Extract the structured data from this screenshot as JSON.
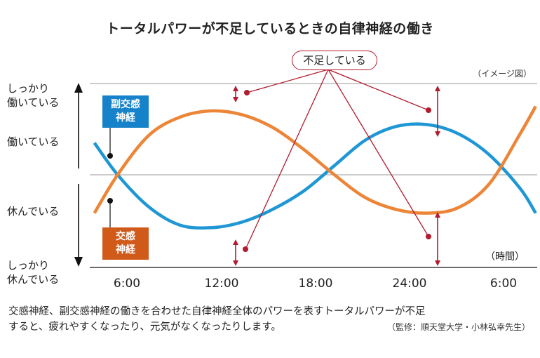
{
  "chart_data": {
    "type": "line",
    "title": "トータルパワーが不足しているときの自律神経の働き",
    "note": "（イメージ図）",
    "xlabel": "（時間）",
    "x_ticks": [
      "6:00",
      "12:00",
      "18:00",
      "24:00",
      "6:00"
    ],
    "y_labels": [
      "しっかり\n働いている",
      "働いている",
      "休んでいる",
      "しっかり\n休んでいる"
    ],
    "series": [
      {
        "name": "副交感神経",
        "color": "#1f97d4",
        "x": [
          4.5,
          6,
          8,
          10,
          12,
          14,
          16,
          18,
          20,
          22,
          24,
          26,
          28,
          30,
          32,
          33
        ],
        "y": [
          0.35,
          0.0,
          -0.35,
          -0.55,
          -0.58,
          -0.52,
          -0.38,
          -0.18,
          0.1,
          0.38,
          0.53,
          0.55,
          0.45,
          0.22,
          -0.15,
          -0.42
        ]
      },
      {
        "name": "交感神経",
        "color": "#ec8537",
        "x": [
          4.5,
          6,
          8,
          10,
          12,
          14,
          16,
          18,
          20,
          22,
          24,
          26,
          28,
          30,
          32,
          33
        ],
        "y": [
          -0.42,
          0.0,
          0.43,
          0.63,
          0.7,
          0.66,
          0.52,
          0.28,
          0.0,
          -0.25,
          -0.38,
          -0.42,
          -0.36,
          -0.1,
          0.45,
          0.75
        ]
      }
    ],
    "ylim": [
      -1,
      1
    ],
    "xlim": [
      4.2,
      33.1
    ],
    "annotation": "不足している"
  },
  "labels": {
    "parasympathetic": "副交感\n神経",
    "sympathetic": "交感\n神経"
  },
  "caption": {
    "line1": "交感神経、副交感神経の働きを合わせた自律神経全体のパワーを表すトータルパワーが不足",
    "line2": "すると、疲れやすくなったり、元気がなくなったりします。",
    "credit": "（監修：順天堂大学・小林弘幸先生）"
  },
  "colors": {
    "accent_red": "#b11c2e",
    "grid": "#999999",
    "axis": "#111111"
  }
}
